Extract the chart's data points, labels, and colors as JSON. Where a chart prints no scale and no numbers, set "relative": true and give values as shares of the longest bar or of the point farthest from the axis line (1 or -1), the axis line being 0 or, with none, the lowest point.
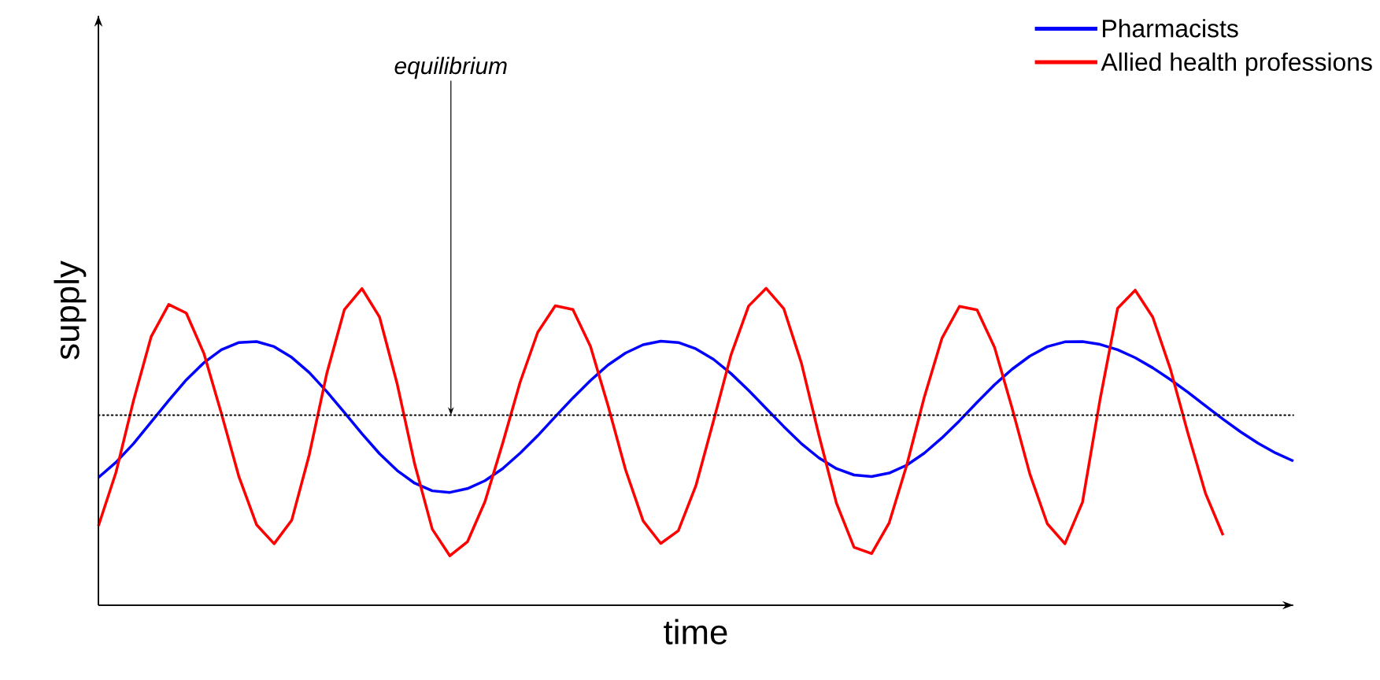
{
  "chart_data": {
    "type": "line",
    "relative": true,
    "xlabel": "time",
    "ylabel": "supply",
    "legend": "top right",
    "marker": "none",
    "line_style": "solid",
    "categories": [
      null,
      null,
      null,
      null,
      null,
      null,
      null,
      null,
      null,
      null,
      null,
      null,
      null,
      null,
      null,
      null,
      null,
      null,
      null,
      null,
      null,
      null,
      null,
      null,
      null,
      null,
      null,
      null,
      null,
      null,
      null,
      null,
      null,
      null,
      null,
      null,
      null,
      null,
      null,
      null,
      null,
      null,
      null,
      null,
      null,
      null,
      null,
      null,
      null,
      null,
      null,
      null,
      null,
      null,
      null,
      null,
      null,
      null,
      null,
      null,
      null,
      null,
      null,
      null,
      null,
      null,
      null,
      null,
      null
    ],
    "series": [
      {
        "name": "Pharmacists",
        "color": "#0000ff",
        "values": [
          0.403,
          0.451,
          0.51,
          0.578,
          0.646,
          0.711,
          0.765,
          0.806,
          0.829,
          0.832,
          0.816,
          0.782,
          0.734,
          0.674,
          0.608,
          0.541,
          0.478,
          0.425,
          0.385,
          0.361,
          0.356,
          0.368,
          0.393,
          0.431,
          0.48,
          0.535,
          0.595,
          0.654,
          0.709,
          0.758,
          0.796,
          0.822,
          0.833,
          0.829,
          0.809,
          0.776,
          0.731,
          0.678,
          0.621,
          0.564,
          0.51,
          0.465,
          0.431,
          0.411,
          0.406,
          0.417,
          0.442,
          0.48,
          0.528,
          0.582,
          0.64,
          0.696,
          0.745,
          0.786,
          0.816,
          0.831,
          0.832,
          0.823,
          0.806,
          0.781,
          0.749,
          0.712,
          0.672,
          0.629,
          0.587,
          0.547,
          0.511,
          0.48,
          0.455
        ]
      },
      {
        "name": "Allied health professions",
        "color": "#ff0000",
        "values": [
          0.25,
          0.419,
          0.646,
          0.847,
          0.949,
          0.922,
          0.795,
          0.605,
          0.405,
          0.254,
          0.194,
          0.268,
          0.475,
          0.732,
          0.933,
          0.999,
          0.909,
          0.699,
          0.445,
          0.24,
          0.156,
          0.2,
          0.327,
          0.51,
          0.704,
          0.861,
          0.945,
          0.933,
          0.817,
          0.63,
          0.427,
          0.266,
          0.195,
          0.235,
          0.377,
          0.581,
          0.79,
          0.944,
          1.0,
          0.936,
          0.765,
          0.537,
          0.322,
          0.183,
          0.163,
          0.26,
          0.442,
          0.657,
          0.842,
          0.943,
          0.932,
          0.813,
          0.621,
          0.415,
          0.257,
          0.194,
          0.325,
          0.649,
          0.937,
          0.994,
          0.909,
          0.746,
          0.543,
          0.353,
          0.221,
          null,
          null,
          null,
          null
        ]
      }
    ],
    "ref_lines": [
      {
        "axis": "y",
        "value": 0.6,
        "color": "#000000",
        "line_style": "dotted"
      }
    ],
    "annotations": [
      "equilibrium"
    ]
  }
}
